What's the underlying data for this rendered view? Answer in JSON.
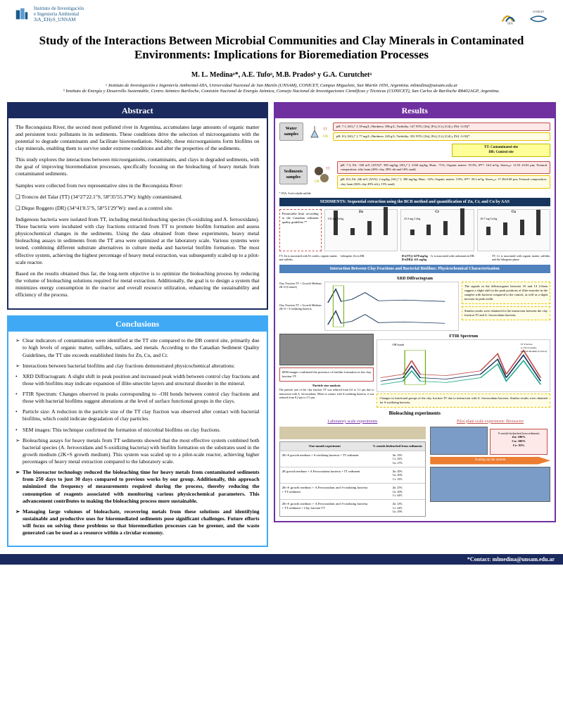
{
  "logos": {
    "left_lines": [
      "Instituto de Investigación",
      "e Ingeniería Ambiental",
      "3iA_EHyS_UNSAM"
    ],
    "right_labels": [
      "IIIA",
      "CONICET"
    ]
  },
  "title": "Study of the Interactions Between Microbial Communities and Clay Minerals in Contaminated Environments: Implications for Bioremediation Processes",
  "authors": "M. L. Medinaᵃ*, A.E. Tufoᵃ, M.B. Pradosᵇ y G.A. Curutchetᵃ",
  "affiliations": "ᵃ Instituto de Investigación e Ingeniería Ambiental-IIIA, Universidad Nacional de San Martín (UNSAM), CONICET, Campus Miguelete, San Martín 1650, Argentina. mlmedina@unsam.edu.ar\nᵇ Instituto de Energía y Desarrollo Sustentable, Centro Atómico Bariloche, Comisión Nacional de Energía Atómica, Consejo Nacional de Investigaciones Científicas y Técnicas (CONICET), San Carlos de Bariloche R8402AGP, Argentina.",
  "abstract": {
    "title": "Abstract",
    "p1": "The Reconquista River, the second most polluted river in Argentina, accumulates large amounts of organic matter and persistent toxic pollutants in its sediments. These conditions drive the selection of microorganisms with the potential to degrade contaminants and facilitate bioremediation. Notably, these microorganisms form biofilms on clay minerals, enabling them to survive under extreme conditions and alter the properties of the sediments.",
    "p2": "This study explores the interactions between microorganisms, contaminants, and clays in degraded sediments, with the goal of improving bioremediation processes, specifically focusing on the bioleaching of heavy metals from contaminated sediments.",
    "p3": "Samples were collected from two representative sites in the Reconquista River:",
    "s1": "Troncos del Talar (TT) (34°27'22.1\"S, 58°35'55.3\"W): highly contaminated.",
    "s2": "Dique Roggero (DR) (34°41'0.5\"S, 58°51'29\"W): used as a control site.",
    "p4": "Indigenous bacteria were isolated from TT, including metal-bioleaching species (S-oxidizing and A. ferrooxidans). These bacteria were incubated with clay fractions extracted from TT to promote biofilm formation and assess physicochemical changes in the sediments. Using the data obtained from these experiments, heavy metal bioleaching assays in sediments from the TT area were optimized at the laboratory scale. Various systems were tested, combining different substrate alternatives in culture media and bacterial biofilm formation. The most effective system, achieving the highest percentage of heavy metal extraction, was subsequently scaled up to a pilot-scale reactor.",
    "p5": "Based on the results obtained thus far, the long-term objective is to optimize the bioleaching process by reducing the volume of bioleaching solutions required for metal extraction. Additionally, the goal is to design a system that minimizes energy consumption in the reactor and overall resource utilization, enhancing the sustainability and efficiency of the process."
  },
  "conclusions": {
    "title": "Conclusions",
    "items": [
      {
        "text": "Clear indicators of contamination were identified at the TT site compared to the DR control site, primarily due to high levels of organic matter, sulfides, sulfates, and metals. According to the Canadian Sediment Quality Guidelines, the TT site exceeds established limits for Zn, Cu, and Cr.",
        "bold": false
      },
      {
        "text": "Interactions between bacterial biofilms and clay fractions demonstrated physicochemical alterations:",
        "bold": false
      },
      {
        "text": "XRD Diffractogram: A slight shift in peak position and increased peak width between control clay fractions and those with biofilms may indicate expansion of illite-smectite layers and structural disorder in the mineral.",
        "sub": true
      },
      {
        "text": "FTIR Spectrum: Changes observed in peaks corresponding to –OH bonds between control clay fractions and those with bacterial biofilms suggest alterations at the level of surface functional groups in the clays.",
        "sub": true
      },
      {
        "text": "Particle size: A reduction in the particle size of the TT clay fraction was observed after contact with bacterial biofilms, which could indicate degradation of clay particles.",
        "sub": true
      },
      {
        "text": "SEM images: This technique confirmed the formation of microbial biofilms on clay fractions.",
        "sub": true
      },
      {
        "text": "Bioleaching assays for heavy metals from TT sediments showed that the most effective system combined both bacterial species (A. ferrooxidans and S-oxidizing bacteria) with biofilm formation on the substrates used in the growth medium (2K+S growth medium). This system was scaled up to a pilot-scale reactor, achieving higher percentages of heavy metal extraction compared to the laboratory scale.",
        "bold": false
      },
      {
        "text": "The bioreactor technology reduced the bioleaching time for heavy metals from contaminated sediments from 250 days to just 30 days compared to previous works by our group. Additionally, this approach minimized the frequency of measurements required during the process, thereby reducing the consumption of reagents associated with monitoring various physicochemical parameters. This advancement contributes to making the bioleaching process more sustainable.",
        "bold": true
      },
      {
        "text": "Managing large volumes of bioleachate, recovering metals from these solutions and identifying sustainable and productive uses for bioremediated sediments pose significant challenges. Future efforts will focus on solving these problems so that bioremediation processes can be greener, and the waste generated can be used as a resource within a circular economy.",
        "bold": true
      }
    ]
  },
  "results": {
    "title": "Results",
    "water_label": "Water\nsamples",
    "sed_label": "Sediments\nsamples",
    "water_tt": "pH: 7.1; [SO₄²⁻]: 58 mg/L; Hardness: 386 g/L; Turbidity: 147 NTU; [Zn], [Fe], [Cr], [Cd] y [Ni] <LOQ*",
    "water_dr": "pH: 8.3; [SO₄²⁻]: 77 mg/L; Hardness: 220 g/L; Turbidity: 352 NTU; [Zn], [Fe], [Cr], [Cd] y [Ni] <LOQ*",
    "legend": "TT: Contaminated site\nDR: Control site",
    "sed_tt": "pH: 7.3; Eh: -330 mV; [SVA]*: 390 mg/kg; [SO₄²⁻]: 2160 mg/kg; Hum.: 71%; Organic matter: 19.3%; Sᴮᴱᵀ: 16.0 m²/g; Sizeₘₑₐₙ: 12.53 ±0.03 µm; Textural composition: silty loam (26% clay, 58% silt and 16% sand)",
    "sed_dr": "pH: 8.0; Eh: 246 mV; [SVA]: 2 mg/kg; [SO₄²⁻]: 300 mg/kg; Hum.: 32%; Organic matter: 3.9%; Sᴮᴱᵀ: 59.2 m²/g; Sizeₘₑₐₙ: 17.39±0.68 µm; Textural composition: clay loam (36% clay 49% silt y 15% sand)",
    "sed_note": "* SVA: Acid volatile sulfide",
    "sed_section": "SEDIMENTS: Sequential extraction using the BCR method and quantification of Zn, Cr, and Cu by AAS",
    "charts": [
      {
        "title": "Zn",
        "label": "133 mg Zn/kg",
        "bars": [
          35,
          10,
          20,
          40
        ]
      },
      {
        "title": "Cr",
        "label": "23.3 mg Cr/kg",
        "bars": [
          8,
          15,
          20,
          38
        ]
      },
      {
        "title": "Cu",
        "label": "26.7 mg Cu/kg",
        "bars": [
          12,
          18,
          22,
          36
        ]
      }
    ],
    "chart_note_left": "Permissible limit according to the Canadian sediment quality guideline.**",
    "chart_notes": [
      "TT: Zn is associated with Fe oxides, organic matter, and sulfides.",
      "Lithogenic Zn in DR.",
      "Cr is associated with carbonates in DR.",
      "TT: Cr is associated with organic matter, sulfides, and the lithogenic phase."
    ],
    "chart_metals": "[Fe(TT)]: 6270 mg/kg\n[Fe(DR)]: 431 mg/kg",
    "interaction_title": "Interaction Between Clay Fractions and Bacterial Biofilms: Physicochemical Characterization",
    "xrd_title": "XRD Diffractogram",
    "xrd_labels": [
      "Clay Fraction TT + Growth Medium 2K+S (Control)",
      "Clay Fraction TT + Growth Medium 2K+S + S-oxidizing bacteria"
    ],
    "xrd_note1": "The signals in the diffractogram between 10 and 14 2-theta suggest a slight shift in the peak positions of illite-smectite in the samples with bacteria compared to the control, as well as a slight increase in peak width.",
    "xrd_note2": "Similar results were obtained for the interaction between the clay fraction TT and A. ferrooxidans bacteria.",
    "sem_note": "SEM images confirmed the presence of biofilm formation in the clay fraction TT.",
    "particle_title": "Particle size analysis",
    "particle_note": "The particle size of the clay fraction TT was reduced from 6.6 to 5.1 µm due to interaction with A. ferrooxidans. When in contact with S-oxidizing bacteria, it was reduced from 8.2 µm to 5.5 µm.",
    "ftir_title": "FTIR Spectrum",
    "ftir_label": "-OH bonds",
    "ftir_series": "TT Fraction\nA. Ferrooxidans\nGrowth Medium (Control)",
    "ftir_note": "Changes in functional groups of the clay fraction TT due to interaction with A. ferrooxidans bacteria. Similar results were obtained for S-oxidizing bacteria.",
    "bioleach_title": "Bioleaching experiments",
    "lab_title": "Laboratory scale experiments",
    "pilot_title": "Pilot plant scale experiment: Bioreactor",
    "lab_header1": "One-month experiment",
    "lab_header2": "% metals bioleached from sediments",
    "lab_rows": [
      {
        "desc": "2K+S growth medium + S-oxidizing bacteria + TT sediment",
        "vals": "Zn: 19%\nCr: 23%\nCu: 27%"
      },
      {
        "desc": "2K growth medium + A.Ferrooxidans bacteria + TT sediment",
        "vals": "Zn: 20%\nCu: 20%\nCr: 15%"
      },
      {
        "desc": "2K+S growth medium + A.Ferrooxidans and S-oxidizing bacteria + TT sediment",
        "vals": "Zn: 25%\nCu: 40%\nCr: 44%"
      },
      {
        "desc": "2K+S growth medium + A.Ferrooxidans and S-oxidizing bacteria + TT sediment + Clay fraction TT",
        "vals": "Zn: 23%\nCr: 24%\nCu: 29%"
      }
    ],
    "pilot_caption": "% metals bioleached from sediments",
    "pilot_results": "Zn: 100%\nCu: 100%\nCr: 93%",
    "scaleup": "Scaling up the system"
  },
  "footer": "*Contact: mlmedina@unsam.edu.ar",
  "colors": {
    "navy": "#1b2a5e",
    "lightblue": "#3fa9f5",
    "purple": "#7030a0",
    "red": "#c0504d",
    "yellow": "#ffff99",
    "orange": "#ed7d31"
  }
}
